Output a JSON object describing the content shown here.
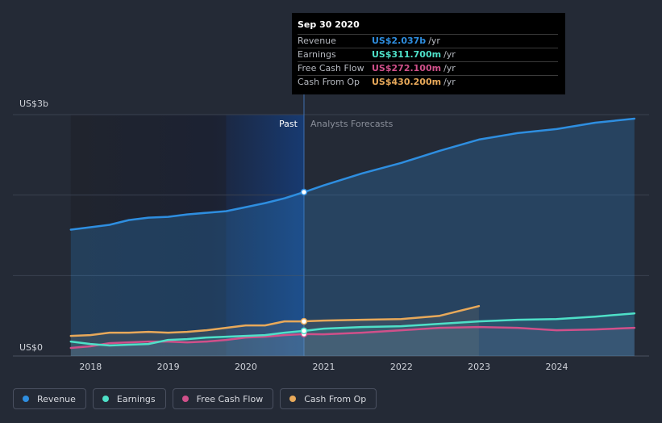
{
  "chart_data": {
    "type": "area",
    "ylim": [
      0,
      3
    ],
    "y_unit": "US$ billions",
    "y_tick_labels": [
      {
        "value": 3,
        "label": "US$3b"
      },
      {
        "value": 0,
        "label": "US$0"
      }
    ],
    "x_ticks": [
      "2018",
      "2019",
      "2020",
      "2021",
      "2022",
      "2023",
      "2024"
    ],
    "past_label": "Past",
    "forecast_label": "Analysts Forecasts",
    "divider_date": "2020-09-30",
    "series": [
      {
        "name": "Revenue",
        "color": "#2e8ee0",
        "points": [
          [
            "2017-09-30",
            1.57
          ],
          [
            "2017-12-31",
            1.6
          ],
          [
            "2018-03-31",
            1.63
          ],
          [
            "2018-06-30",
            1.69
          ],
          [
            "2018-09-30",
            1.72
          ],
          [
            "2018-12-31",
            1.73
          ],
          [
            "2019-03-31",
            1.76
          ],
          [
            "2019-06-30",
            1.78
          ],
          [
            "2019-09-30",
            1.8
          ],
          [
            "2019-12-31",
            1.85
          ],
          [
            "2020-03-31",
            1.9
          ],
          [
            "2020-06-30",
            1.96
          ],
          [
            "2020-09-30",
            2.037
          ],
          [
            "2020-12-31",
            2.12
          ],
          [
            "2021-06-30",
            2.27
          ],
          [
            "2021-12-31",
            2.4
          ],
          [
            "2022-06-30",
            2.55
          ],
          [
            "2022-12-31",
            2.69
          ],
          [
            "2023-06-30",
            2.77
          ],
          [
            "2023-12-31",
            2.82
          ],
          [
            "2024-06-30",
            2.9
          ],
          [
            "2024-12-31",
            2.95
          ]
        ]
      },
      {
        "name": "Earnings",
        "color": "#4ee0c8",
        "points": [
          [
            "2017-09-30",
            0.18
          ],
          [
            "2017-12-31",
            0.15
          ],
          [
            "2018-03-31",
            0.13
          ],
          [
            "2018-06-30",
            0.14
          ],
          [
            "2018-09-30",
            0.15
          ],
          [
            "2018-12-31",
            0.2
          ],
          [
            "2019-03-31",
            0.21
          ],
          [
            "2019-06-30",
            0.23
          ],
          [
            "2019-09-30",
            0.24
          ],
          [
            "2019-12-31",
            0.25
          ],
          [
            "2020-03-31",
            0.26
          ],
          [
            "2020-06-30",
            0.29
          ],
          [
            "2020-09-30",
            0.3117
          ],
          [
            "2020-12-31",
            0.34
          ],
          [
            "2021-06-30",
            0.36
          ],
          [
            "2021-12-31",
            0.37
          ],
          [
            "2022-06-30",
            0.4
          ],
          [
            "2022-12-31",
            0.43
          ],
          [
            "2023-06-30",
            0.45
          ],
          [
            "2023-12-31",
            0.46
          ],
          [
            "2024-06-30",
            0.49
          ],
          [
            "2024-12-31",
            0.53
          ]
        ]
      },
      {
        "name": "Free Cash Flow",
        "color": "#d0508a",
        "points": [
          [
            "2017-09-30",
            0.1
          ],
          [
            "2017-12-31",
            0.12
          ],
          [
            "2018-03-31",
            0.16
          ],
          [
            "2018-06-30",
            0.17
          ],
          [
            "2018-09-30",
            0.18
          ],
          [
            "2018-12-31",
            0.18
          ],
          [
            "2019-03-31",
            0.17
          ],
          [
            "2019-06-30",
            0.18
          ],
          [
            "2019-09-30",
            0.2
          ],
          [
            "2019-12-31",
            0.23
          ],
          [
            "2020-03-31",
            0.24
          ],
          [
            "2020-06-30",
            0.26
          ],
          [
            "2020-09-30",
            0.2721
          ],
          [
            "2020-12-31",
            0.27
          ],
          [
            "2021-06-30",
            0.29
          ],
          [
            "2021-12-31",
            0.32
          ],
          [
            "2022-06-30",
            0.35
          ],
          [
            "2022-12-31",
            0.36
          ],
          [
            "2023-06-30",
            0.35
          ],
          [
            "2023-12-31",
            0.32
          ],
          [
            "2024-06-30",
            0.33
          ],
          [
            "2024-12-31",
            0.35
          ]
        ]
      },
      {
        "name": "Cash From Op",
        "color": "#e8a95a",
        "points": [
          [
            "2017-09-30",
            0.25
          ],
          [
            "2017-12-31",
            0.26
          ],
          [
            "2018-03-31",
            0.29
          ],
          [
            "2018-06-30",
            0.29
          ],
          [
            "2018-09-30",
            0.3
          ],
          [
            "2018-12-31",
            0.29
          ],
          [
            "2019-03-31",
            0.3
          ],
          [
            "2019-06-30",
            0.32
          ],
          [
            "2019-09-30",
            0.35
          ],
          [
            "2019-12-31",
            0.38
          ],
          [
            "2020-03-31",
            0.38
          ],
          [
            "2020-06-30",
            0.43
          ],
          [
            "2020-09-30",
            0.4302
          ],
          [
            "2020-12-31",
            0.44
          ],
          [
            "2021-06-30",
            0.45
          ],
          [
            "2021-12-31",
            0.46
          ],
          [
            "2022-06-30",
            0.5
          ],
          [
            "2022-12-31",
            0.62
          ]
        ]
      }
    ]
  },
  "tooltip": {
    "date": "Sep 30 2020",
    "unit": "/yr",
    "rows": [
      {
        "label": "Revenue",
        "value": "US$2.037b",
        "color": "#2e8ee0"
      },
      {
        "label": "Earnings",
        "value": "US$311.700m",
        "color": "#4ee0c8"
      },
      {
        "label": "Free Cash Flow",
        "value": "US$272.100m",
        "color": "#d0508a"
      },
      {
        "label": "Cash From Op",
        "value": "US$430.200m",
        "color": "#e8a95a"
      }
    ]
  },
  "legend": [
    {
      "label": "Revenue",
      "color": "#2e8ee0"
    },
    {
      "label": "Earnings",
      "color": "#4ee0c8"
    },
    {
      "label": "Free Cash Flow",
      "color": "#d0508a"
    },
    {
      "label": "Cash From Op",
      "color": "#e8a95a"
    }
  ]
}
